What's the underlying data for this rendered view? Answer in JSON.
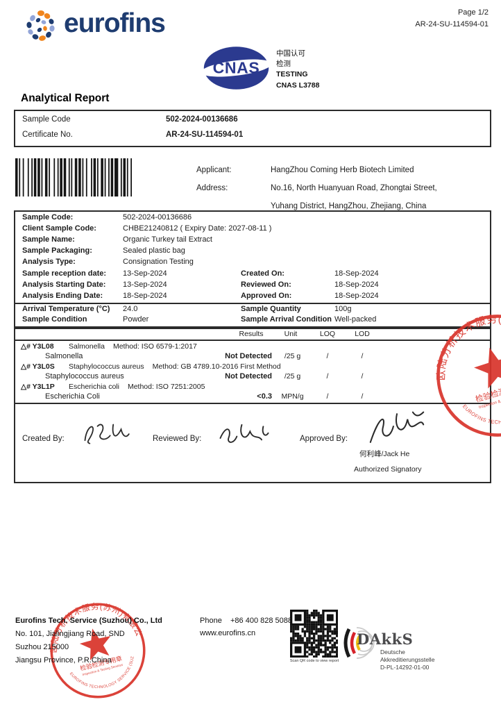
{
  "header": {
    "logo_text": "eurofins",
    "page": "Page 1/2",
    "report_no": "AR-24-SU-114594-01"
  },
  "cnas": {
    "logo_text": "CNAS",
    "line1": "中国认可",
    "line2": "检测",
    "line3": "TESTING",
    "line4": "CNAS L3788"
  },
  "title": "Analytical Report",
  "id_box": {
    "rows": [
      {
        "label": "Sample Code",
        "value": "502-2024-00136686"
      },
      {
        "label": "Certificate No.",
        "value": "AR-24-SU-114594-01"
      }
    ]
  },
  "applicant": {
    "label": "Applicant:",
    "name": "HangZhou Coming Herb Biotech Limited",
    "address_label": "Address:",
    "address_line1": "No.16, North Huanyuan Road, Zhongtai Street,",
    "address_line2": "Yuhang District, HangZhou, Zhejiang, China"
  },
  "details": {
    "single_rows": [
      {
        "label": "Sample Code:",
        "value": "502-2024-00136686"
      },
      {
        "label": "Client Sample Code:",
        "value": "CHBE21240812 ( Expiry Date: 2027-08-11 )"
      },
      {
        "label": "Sample Name:",
        "value": "Organic Turkey tail Extract"
      },
      {
        "label": "Sample Packaging:",
        "value": "Sealed plastic bag"
      },
      {
        "label": "Analysis Type:",
        "value": "Consignation Testing"
      }
    ],
    "date_rows": [
      {
        "l_label": "Sample reception date:",
        "l_value": "13-Sep-2024",
        "r_label": "Created On:",
        "r_value": "18-Sep-2024"
      },
      {
        "l_label": "Analysis Starting Date:",
        "l_value": "13-Sep-2024",
        "r_label": "Reviewed On:",
        "r_value": "18-Sep-2024"
      },
      {
        "l_label": "Analysis Ending Date:",
        "l_value": "18-Sep-2024",
        "r_label": "Approved On:",
        "r_value": "18-Sep-2024"
      }
    ],
    "condition_rows": [
      {
        "l_label": "Arrival Temperature (°C)",
        "l_value": "24.0",
        "r_label": "Sample Quantity",
        "r_value": "100g"
      },
      {
        "l_label": "Sample Condition",
        "l_value": "Powder",
        "r_label": "Sample Arrival Condition",
        "r_value": "Well-packed"
      }
    ]
  },
  "results": {
    "headers": {
      "results": "Results",
      "unit": "Unit",
      "loq": "LOQ",
      "lod": "LOD"
    },
    "tests": [
      {
        "code": "△# Y3L08",
        "name": "Salmonella",
        "method": "Method: ISO 6579-1:2017",
        "analyte": "Salmonella",
        "result": "Not Detected",
        "unit": "/25 g",
        "loq": "/",
        "lod": "/"
      },
      {
        "code": "△# Y3L0S",
        "name": "Staphylococcus aureus",
        "method": "Method: GB 4789.10-2016 First Method",
        "analyte": "Staphylococcus aureus",
        "result": "Not Detected",
        "unit": "/25 g",
        "loq": "/",
        "lod": "/"
      },
      {
        "code": "△# Y3L1P",
        "name": "Escherichia coli",
        "method": "Method: ISO 7251:2005",
        "analyte": "Escherichia Coli",
        "result": "<0.3",
        "unit": "MPN/g",
        "loq": "/",
        "lod": "/"
      }
    ]
  },
  "signatures": {
    "created_label": "Created By:",
    "reviewed_label": "Reviewed By:",
    "approved_label": "Approved By:",
    "approved_name": "何利峰/Jack He",
    "approved_title": "Authorized Signatory"
  },
  "stamp": {
    "arc_top": "欧陆分析技术服务(苏州)有限公司",
    "arc_bottom": "EUROFINS TECHNOLOGY SERVICE (SUZHOU) CO., LTD",
    "center_line1": "检验检测专用章",
    "center_line2": "Inspection & Testing Services",
    "color": "#d9342b"
  },
  "footer": {
    "company": "Eurofins Tech. Service (Suzhou) Co., Ltd",
    "address1": "No. 101, Jialingjiang Road, SND",
    "address2": "Suzhou 215000",
    "address3": "Jiangsu Province, P.R.China",
    "phone_label": "Phone",
    "phone": "+86 400 828 5088",
    "website": "www.eurofins.cn",
    "qr_caption": "Scan QR code to view report",
    "dakks": {
      "wordmark": "DAkkS",
      "line1": "Deutsche",
      "line2": "Akkreditierungsstelle",
      "line3": "D-PL-14292-01-00"
    }
  },
  "barcode": {
    "pattern": "211213121121211221131211212211122121121311211221121121321121121"
  },
  "colors": {
    "eurofins_navy": "#1e3c70",
    "eurofins_orange": "#f0851e",
    "eurofins_periwinkle": "#93a5d8",
    "cnas_blue": "#2b3a8f",
    "stamp_red": "#d9342b"
  }
}
